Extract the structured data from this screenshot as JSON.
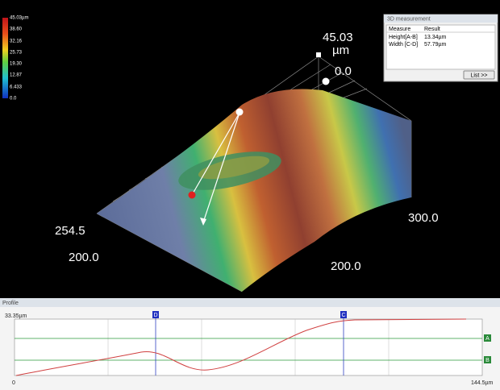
{
  "colorbar": {
    "labels": [
      "45.03µm",
      "38.60",
      "32.16",
      "25.73",
      "19.30",
      "12.87",
      "6.433",
      "0.0"
    ]
  },
  "view3d": {
    "z_max": "45.03",
    "z_unit": "µm",
    "z_min": "0.0",
    "axis_labels": [
      "254.5",
      "200.0",
      "300.0",
      "200.0"
    ]
  },
  "measurement_panel": {
    "title": "3D measurement",
    "headers": [
      "Measure",
      "Result"
    ],
    "rows": [
      [
        "Height[A-B]",
        "13.34µm"
      ],
      [
        "Width [C-D]",
        "57.79µm"
      ]
    ],
    "button": "List >>"
  },
  "profile": {
    "title": "Profile",
    "y_max_label": "33.35µm",
    "x_min_label": "0",
    "x_max_label": "144.5µm",
    "cursors": [
      "D",
      "C"
    ],
    "levels": [
      "A",
      "B"
    ]
  }
}
